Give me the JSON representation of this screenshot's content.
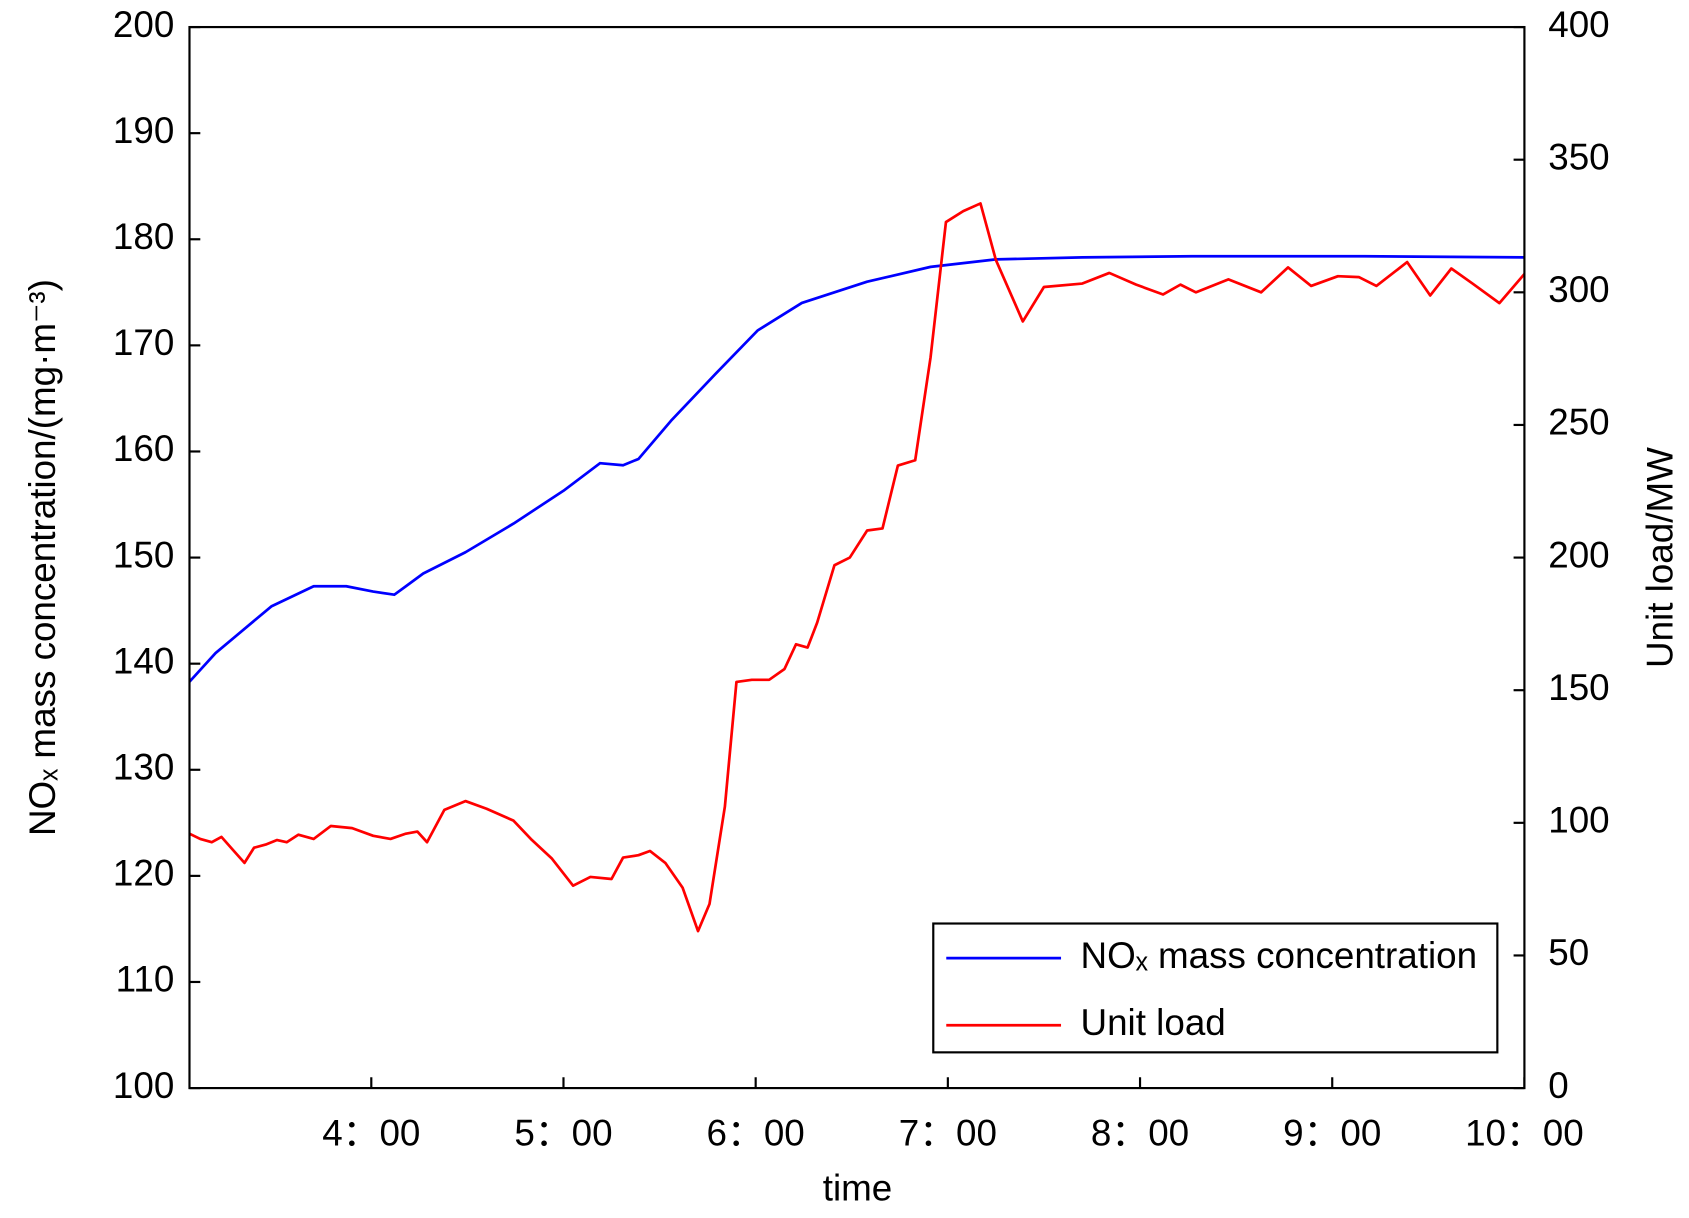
{
  "chart_data": {
    "type": "line",
    "x_label": "time",
    "y_label": "NOₓ mass concentration/(mg·m⁻³)",
    "y2_label": "Unit load/MW",
    "xlim": [
      3.054,
      10
    ],
    "xticks": [
      {
        "value": 4,
        "label": "4：00"
      },
      {
        "value": 5,
        "label": "5：00"
      },
      {
        "value": 6,
        "label": "6：00"
      },
      {
        "value": 7,
        "label": "7：00"
      },
      {
        "value": 8,
        "label": "8：00"
      },
      {
        "value": 9,
        "label": "9：00"
      },
      {
        "value": 10,
        "label": "10：00"
      }
    ],
    "ylim": [
      100,
      200
    ],
    "yticks": [
      100,
      110,
      120,
      130,
      140,
      150,
      160,
      170,
      180,
      190,
      200
    ],
    "y2lim": [
      0,
      400
    ],
    "y2ticks": [
      0,
      50,
      100,
      150,
      200,
      250,
      300,
      350,
      400
    ],
    "legend": "lower right",
    "series": [
      {
        "name": "NOₓ mass concentration",
        "color": "#0000ff",
        "x": [
          3.054,
          3.19,
          3.48,
          3.7,
          3.87,
          4.01,
          4.12,
          4.18,
          4.27,
          4.49,
          4.74,
          5.0,
          5.19,
          5.31,
          5.39,
          5.56,
          5.79,
          6.01,
          6.24,
          6.58,
          6.91,
          7.25,
          7.7,
          8.27,
          9.17,
          10.0
        ],
        "values": [
          138.3,
          141.0,
          145.4,
          147.3,
          147.3,
          146.8,
          146.5,
          147.3,
          148.5,
          150.5,
          153.2,
          156.3,
          158.9,
          158.7,
          159.3,
          162.9,
          167.3,
          171.4,
          174.0,
          176.0,
          177.4,
          178.1,
          178.3,
          178.4,
          178.4,
          178.3
        ]
      },
      {
        "name": "Unit load",
        "color": "#ff0000",
        "axis": "y2",
        "x": [
          3.054,
          3.11,
          3.17,
          3.22,
          3.28,
          3.34,
          3.39,
          3.45,
          3.51,
          3.56,
          3.62,
          3.7,
          3.79,
          3.9,
          4.01,
          4.1,
          4.18,
          4.24,
          4.29,
          4.38,
          4.49,
          4.6,
          4.74,
          4.83,
          4.94,
          5.05,
          5.14,
          5.25,
          5.31,
          5.39,
          5.45,
          5.53,
          5.62,
          5.7,
          5.76,
          5.84,
          5.9,
          5.98,
          6.07,
          6.15,
          6.21,
          6.27,
          6.32,
          6.41,
          6.49,
          6.58,
          6.66,
          6.74,
          6.83,
          6.91,
          6.99,
          7.08,
          7.17,
          7.25,
          7.39,
          7.5,
          7.7,
          7.84,
          7.98,
          8.12,
          8.21,
          8.29,
          8.46,
          8.63,
          8.77,
          8.89,
          9.03,
          9.14,
          9.23,
          9.39,
          9.51,
          9.62,
          9.73,
          9.87,
          10.0
        ],
        "values": [
          95.9,
          93.9,
          92.7,
          94.7,
          89.8,
          84.9,
          90.6,
          91.8,
          93.5,
          92.7,
          95.5,
          93.9,
          98.8,
          98.0,
          95.1,
          93.9,
          95.9,
          96.7,
          92.7,
          104.9,
          108.2,
          105.3,
          100.8,
          93.9,
          86.5,
          76.3,
          79.6,
          78.8,
          86.9,
          87.8,
          89.4,
          84.9,
          75.5,
          59.2,
          69.4,
          106.1,
          153.1,
          153.9,
          153.9,
          158.0,
          167.3,
          166.1,
          175.5,
          197.1,
          200.0,
          210.2,
          211.0,
          234.7,
          236.7,
          275.5,
          326.5,
          330.6,
          333.5,
          312.2,
          289.0,
          302.0,
          303.3,
          307.3,
          302.9,
          299.2,
          302.9,
          300.0,
          304.9,
          300.0,
          309.4,
          302.4,
          306.1,
          305.7,
          302.4,
          311.4,
          298.8,
          309.0,
          303.3,
          295.9,
          306.9
        ]
      }
    ]
  }
}
